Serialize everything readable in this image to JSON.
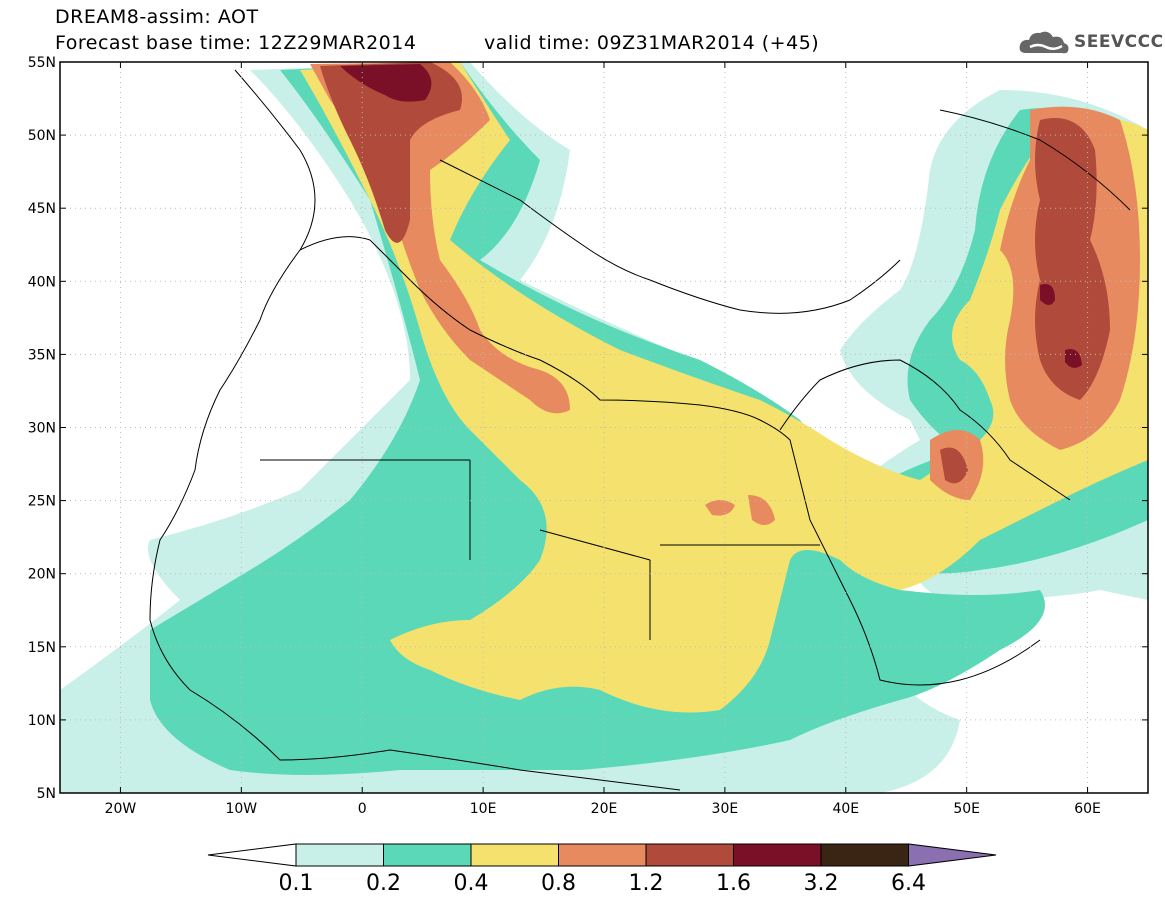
{
  "header": {
    "title": "DREAM8-assim: AOT",
    "subtitle": "Forecast base time: 12Z29MAR2014",
    "valid": "valid time: 09Z31MAR2014 (+45)"
  },
  "logo": {
    "text": "SEEVCCC",
    "icon": "cloud-logo-icon"
  },
  "map": {
    "lat_labels": [
      "55N",
      "50N",
      "45N",
      "40N",
      "35N",
      "30N",
      "25N",
      "20N",
      "15N",
      "10N",
      "5N"
    ],
    "lon_labels": [
      "20W",
      "10W",
      "0",
      "10E",
      "20E",
      "30E",
      "40E",
      "50E",
      "60E"
    ],
    "lat_range": [
      5,
      55
    ],
    "lon_range": [
      -25,
      65
    ]
  },
  "colorbar": {
    "levels": [
      "0.1",
      "0.2",
      "0.4",
      "0.8",
      "1.2",
      "1.6",
      "3.2",
      "6.4"
    ],
    "colors": [
      "#ffffff",
      "#c8f0e8",
      "#5ad8b8",
      "#f5e26e",
      "#e88a60",
      "#b04a3a",
      "#7a1028",
      "#3a2414",
      "#8a70b0"
    ]
  }
}
